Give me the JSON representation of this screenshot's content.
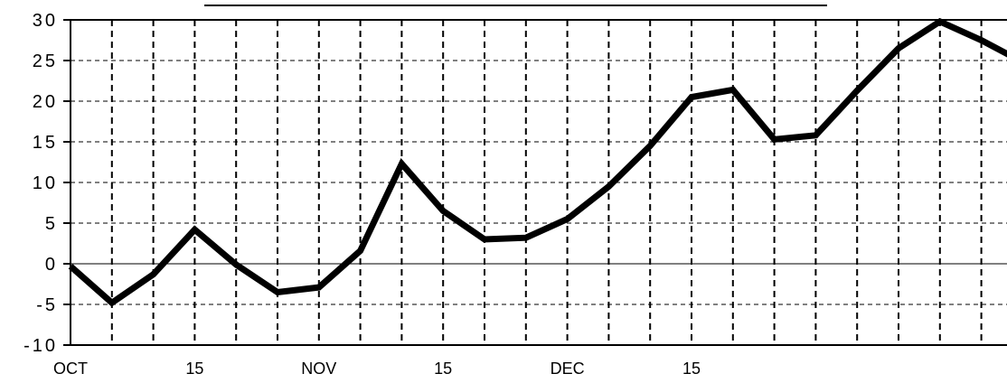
{
  "chart_data": {
    "type": "line",
    "title": "",
    "xlabel": "",
    "ylabel": "",
    "x_tick_labels": [
      "OCT",
      "15",
      "NOV",
      "15",
      "DEC",
      "15"
    ],
    "ylim": [
      -10,
      30
    ],
    "y_ticks": [
      -10,
      -5,
      0,
      5,
      10,
      15,
      20,
      25,
      30
    ],
    "y_tick_labels": [
      "-10",
      "-5",
      "0",
      "5",
      "10",
      "15",
      "20",
      "25",
      "30"
    ],
    "grid": true,
    "grid_style": "dashed",
    "legend": "none",
    "series": [
      {
        "color": "#000000",
        "values": [
          -0.3,
          -4.8,
          -1.3,
          4.2,
          -0.1,
          -3.5,
          -2.9,
          1.6,
          12.3,
          6.5,
          3.0,
          3.2,
          5.5,
          9.5,
          14.5,
          20.5,
          21.4,
          15.3,
          15.8,
          21.3,
          26.5,
          29.8,
          27.5,
          24.8
        ]
      }
    ]
  }
}
